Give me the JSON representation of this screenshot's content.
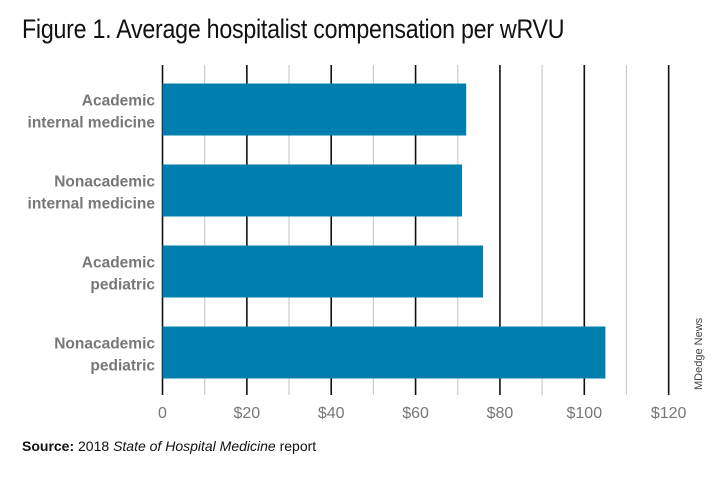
{
  "title": "Figure 1. Average hospitalist compensation per wRVU",
  "source": {
    "label": "Source:",
    "pre": " 2018 ",
    "italic": "State of Hospital Medicine",
    "post": " report"
  },
  "credit": "MDedge News",
  "chart_data": {
    "type": "bar",
    "orientation": "horizontal",
    "title": "Figure 1. Average hospitalist compensation per wRVU",
    "categories": [
      [
        "Academic",
        "internal medicine"
      ],
      [
        "Nonacademic",
        "internal medicine"
      ],
      [
        "Academic",
        "pediatric"
      ],
      [
        "Nonacademic",
        "pediatric"
      ]
    ],
    "values": [
      72,
      71,
      76,
      105
    ],
    "xlim": [
      0,
      120
    ],
    "ticks": [
      0,
      20,
      40,
      60,
      80,
      100,
      120
    ],
    "tick_labels": [
      "0",
      "$20",
      "$40",
      "$60",
      "$80",
      "$100",
      "$120"
    ],
    "grid": true,
    "bar_color": "#007fae"
  }
}
